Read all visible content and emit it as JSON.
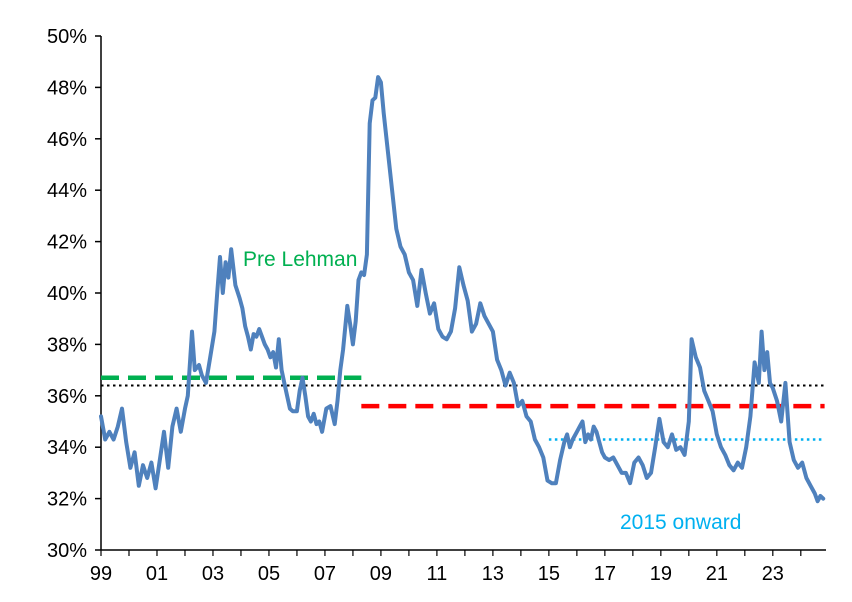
{
  "chart_data": {
    "type": "line",
    "ylim": [
      30,
      50
    ],
    "y_ticks": [
      "30%",
      "32%",
      "34%",
      "36%",
      "38%",
      "40%",
      "42%",
      "44%",
      "46%",
      "48%",
      "50%"
    ],
    "x_range": [
      1999,
      2024.9
    ],
    "x_ticks": [
      {
        "label": "99",
        "x": 1999
      },
      {
        "label": "01",
        "x": 2001
      },
      {
        "label": "03",
        "x": 2003
      },
      {
        "label": "05",
        "x": 2005
      },
      {
        "label": "07",
        "x": 2007
      },
      {
        "label": "09",
        "x": 2009
      },
      {
        "label": "11",
        "x": 2011
      },
      {
        "label": "13",
        "x": 2013
      },
      {
        "label": "15",
        "x": 2015
      },
      {
        "label": "17",
        "x": 2017
      },
      {
        "label": "19",
        "x": 2019
      },
      {
        "label": "21",
        "x": 2021
      },
      {
        "label": "23",
        "x": 2023
      }
    ],
    "series": [
      {
        "color": "#4f81bd",
        "points": [
          [
            1999.0,
            35.2
          ],
          [
            1999.15,
            34.3
          ],
          [
            1999.3,
            34.6
          ],
          [
            1999.45,
            34.3
          ],
          [
            1999.6,
            34.8
          ],
          [
            1999.75,
            35.5
          ],
          [
            1999.9,
            34.2
          ],
          [
            2000.05,
            33.2
          ],
          [
            2000.2,
            33.8
          ],
          [
            2000.35,
            32.5
          ],
          [
            2000.5,
            33.3
          ],
          [
            2000.65,
            32.8
          ],
          [
            2000.8,
            33.4
          ],
          [
            2000.95,
            32.4
          ],
          [
            2001.1,
            33.5
          ],
          [
            2001.25,
            34.6
          ],
          [
            2001.4,
            33.2
          ],
          [
            2001.55,
            34.8
          ],
          [
            2001.7,
            35.5
          ],
          [
            2001.85,
            34.6
          ],
          [
            2002.0,
            35.5
          ],
          [
            2002.1,
            36.0
          ],
          [
            2002.25,
            38.5
          ],
          [
            2002.35,
            37.0
          ],
          [
            2002.5,
            37.2
          ],
          [
            2002.6,
            36.8
          ],
          [
            2002.75,
            36.5
          ],
          [
            2002.9,
            37.5
          ],
          [
            2003.05,
            38.5
          ],
          [
            2003.15,
            40.0
          ],
          [
            2003.25,
            41.4
          ],
          [
            2003.35,
            40.0
          ],
          [
            2003.45,
            41.2
          ],
          [
            2003.55,
            40.6
          ],
          [
            2003.65,
            41.7
          ],
          [
            2003.8,
            40.3
          ],
          [
            2003.95,
            39.8
          ],
          [
            2004.05,
            39.4
          ],
          [
            2004.15,
            38.7
          ],
          [
            2004.25,
            38.3
          ],
          [
            2004.35,
            37.8
          ],
          [
            2004.45,
            38.4
          ],
          [
            2004.55,
            38.3
          ],
          [
            2004.65,
            38.6
          ],
          [
            2004.75,
            38.3
          ],
          [
            2004.85,
            38.0
          ],
          [
            2004.95,
            37.8
          ],
          [
            2005.05,
            37.5
          ],
          [
            2005.15,
            37.7
          ],
          [
            2005.25,
            37.1
          ],
          [
            2005.35,
            38.2
          ],
          [
            2005.45,
            37.0
          ],
          [
            2005.55,
            36.5
          ],
          [
            2005.65,
            36.0
          ],
          [
            2005.75,
            35.5
          ],
          [
            2005.85,
            35.4
          ],
          [
            2006.0,
            35.4
          ],
          [
            2006.1,
            36.2
          ],
          [
            2006.2,
            36.7
          ],
          [
            2006.3,
            36.0
          ],
          [
            2006.4,
            35.2
          ],
          [
            2006.5,
            35.0
          ],
          [
            2006.6,
            35.3
          ],
          [
            2006.7,
            34.9
          ],
          [
            2006.8,
            35.0
          ],
          [
            2006.9,
            34.6
          ],
          [
            2007.05,
            35.5
          ],
          [
            2007.2,
            35.6
          ],
          [
            2007.35,
            34.9
          ],
          [
            2007.45,
            35.8
          ],
          [
            2007.55,
            37.0
          ],
          [
            2007.65,
            37.8
          ],
          [
            2007.8,
            39.5
          ],
          [
            2007.9,
            38.8
          ],
          [
            2008.0,
            38.0
          ],
          [
            2008.1,
            38.9
          ],
          [
            2008.2,
            40.5
          ],
          [
            2008.3,
            40.8
          ],
          [
            2008.4,
            40.7
          ],
          [
            2008.5,
            41.5
          ],
          [
            2008.6,
            46.6
          ],
          [
            2008.7,
            47.5
          ],
          [
            2008.8,
            47.6
          ],
          [
            2008.9,
            48.4
          ],
          [
            2009.0,
            48.2
          ],
          [
            2009.1,
            47.0
          ],
          [
            2009.25,
            45.5
          ],
          [
            2009.4,
            44.0
          ],
          [
            2009.55,
            42.5
          ],
          [
            2009.7,
            41.8
          ],
          [
            2009.85,
            41.5
          ],
          [
            2010.0,
            40.8
          ],
          [
            2010.15,
            40.5
          ],
          [
            2010.3,
            39.5
          ],
          [
            2010.45,
            40.9
          ],
          [
            2010.6,
            40.0
          ],
          [
            2010.75,
            39.2
          ],
          [
            2010.9,
            39.6
          ],
          [
            2011.05,
            38.6
          ],
          [
            2011.2,
            38.3
          ],
          [
            2011.35,
            38.2
          ],
          [
            2011.5,
            38.5
          ],
          [
            2011.65,
            39.4
          ],
          [
            2011.8,
            41.0
          ],
          [
            2011.95,
            40.3
          ],
          [
            2012.1,
            39.7
          ],
          [
            2012.25,
            38.5
          ],
          [
            2012.4,
            38.8
          ],
          [
            2012.55,
            39.6
          ],
          [
            2012.7,
            39.1
          ],
          [
            2012.85,
            38.8
          ],
          [
            2013.0,
            38.5
          ],
          [
            2013.15,
            37.4
          ],
          [
            2013.3,
            37.0
          ],
          [
            2013.45,
            36.4
          ],
          [
            2013.6,
            36.9
          ],
          [
            2013.75,
            36.5
          ],
          [
            2013.9,
            35.6
          ],
          [
            2014.05,
            35.8
          ],
          [
            2014.2,
            35.2
          ],
          [
            2014.35,
            35.0
          ],
          [
            2014.5,
            34.3
          ],
          [
            2014.65,
            34.0
          ],
          [
            2014.8,
            33.6
          ],
          [
            2014.95,
            32.7
          ],
          [
            2015.1,
            32.6
          ],
          [
            2015.25,
            32.6
          ],
          [
            2015.4,
            33.5
          ],
          [
            2015.55,
            34.2
          ],
          [
            2015.65,
            34.5
          ],
          [
            2015.75,
            34.0
          ],
          [
            2015.85,
            34.3
          ],
          [
            2016.0,
            34.6
          ],
          [
            2016.1,
            34.8
          ],
          [
            2016.2,
            35.0
          ],
          [
            2016.3,
            34.2
          ],
          [
            2016.4,
            34.5
          ],
          [
            2016.5,
            34.3
          ],
          [
            2016.6,
            34.8
          ],
          [
            2016.7,
            34.6
          ],
          [
            2016.8,
            34.2
          ],
          [
            2016.9,
            33.8
          ],
          [
            2017.0,
            33.6
          ],
          [
            2017.15,
            33.5
          ],
          [
            2017.3,
            33.6
          ],
          [
            2017.45,
            33.3
          ],
          [
            2017.6,
            33.0
          ],
          [
            2017.75,
            33.0
          ],
          [
            2017.9,
            32.6
          ],
          [
            2018.05,
            33.4
          ],
          [
            2018.2,
            33.6
          ],
          [
            2018.35,
            33.3
          ],
          [
            2018.5,
            32.8
          ],
          [
            2018.65,
            33.0
          ],
          [
            2018.8,
            34.0
          ],
          [
            2018.95,
            35.1
          ],
          [
            2019.1,
            34.2
          ],
          [
            2019.25,
            34.0
          ],
          [
            2019.4,
            34.5
          ],
          [
            2019.55,
            33.9
          ],
          [
            2019.7,
            34.0
          ],
          [
            2019.85,
            33.7
          ],
          [
            2020.0,
            35.0
          ],
          [
            2020.1,
            38.2
          ],
          [
            2020.25,
            37.5
          ],
          [
            2020.4,
            37.1
          ],
          [
            2020.55,
            36.2
          ],
          [
            2020.7,
            35.8
          ],
          [
            2020.85,
            35.4
          ],
          [
            2021.0,
            34.5
          ],
          [
            2021.15,
            34.0
          ],
          [
            2021.3,
            33.7
          ],
          [
            2021.45,
            33.3
          ],
          [
            2021.6,
            33.1
          ],
          [
            2021.75,
            33.4
          ],
          [
            2021.9,
            33.2
          ],
          [
            2022.05,
            34.0
          ],
          [
            2022.2,
            35.2
          ],
          [
            2022.35,
            37.3
          ],
          [
            2022.5,
            36.5
          ],
          [
            2022.6,
            38.5
          ],
          [
            2022.7,
            37.0
          ],
          [
            2022.8,
            37.7
          ],
          [
            2022.9,
            36.5
          ],
          [
            2023.0,
            36.3
          ],
          [
            2023.15,
            35.8
          ],
          [
            2023.3,
            35.0
          ],
          [
            2023.45,
            36.5
          ],
          [
            2023.6,
            34.2
          ],
          [
            2023.75,
            33.5
          ],
          [
            2023.9,
            33.2
          ],
          [
            2024.05,
            33.4
          ],
          [
            2024.2,
            32.8
          ],
          [
            2024.35,
            32.5
          ],
          [
            2024.5,
            32.2
          ],
          [
            2024.6,
            31.9
          ],
          [
            2024.7,
            32.1
          ],
          [
            2024.8,
            32.0
          ]
        ]
      }
    ],
    "reference_lines": [
      {
        "label": "Pre Lehman",
        "y": 36.7,
        "x_start": 1999.0,
        "x_end": 2008.3,
        "color": "#00b050",
        "style": "dashed"
      },
      {
        "y": 35.6,
        "x_start": 2008.3,
        "x_end": 2024.85,
        "color": "#ff0000",
        "style": "dashed"
      },
      {
        "y": 36.4,
        "x_start": 1999.0,
        "x_end": 2024.85,
        "color": "#000000",
        "style": "dotted"
      },
      {
        "label": "2015 onward",
        "y": 34.3,
        "x_start": 2015.0,
        "x_end": 2024.85,
        "color": "#00b0f0",
        "style": "dotted"
      }
    ],
    "grid": false
  }
}
